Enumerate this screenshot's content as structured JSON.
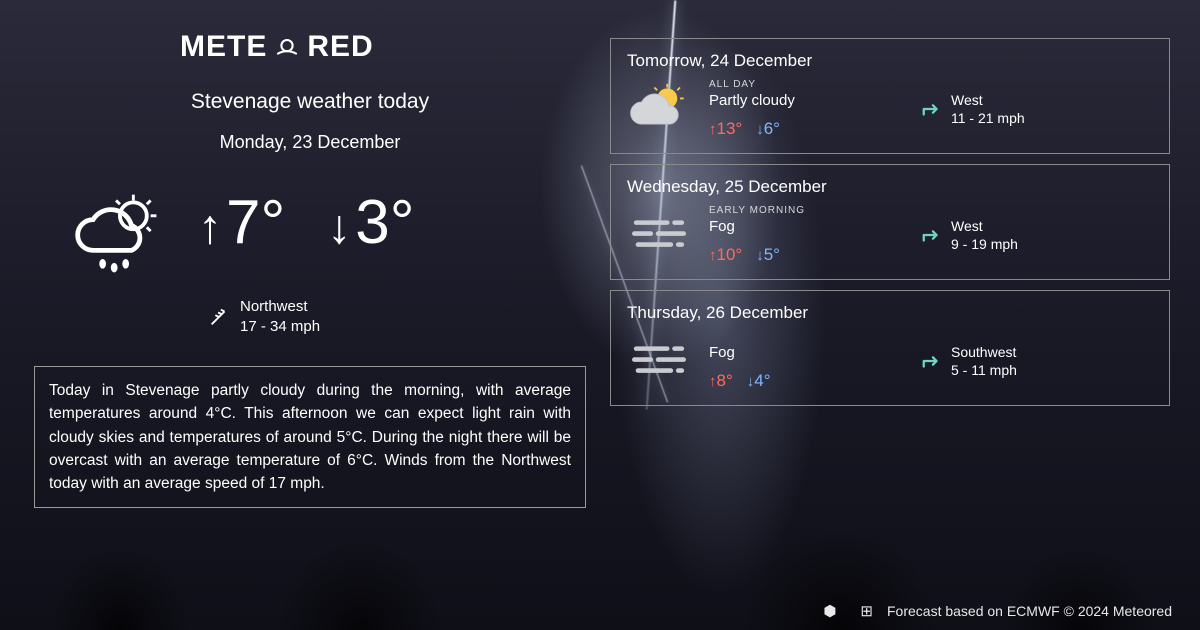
{
  "brand": {
    "name": "METEORED"
  },
  "header": {
    "title": "Stevenage weather today",
    "date": "Monday, 23 December"
  },
  "colors": {
    "text": "#ffffff",
    "border": "#8a8a8a",
    "hi": "#ff6b5b",
    "lo": "#7fb8ff"
  },
  "current": {
    "icon": "cloud-sun-rain",
    "high": "7°",
    "low": "3°",
    "wind_dir": "Northwest",
    "wind_speed": "17 - 34 mph"
  },
  "description": "Today in Stevenage partly cloudy during the morning, with average temperatures around 4°C. This afternoon we can expect light rain with cloudy skies and temperatures of around 5°C. During the night there will be overcast with an average temperature of 6°C. Winds from the Northwest today with an average speed of 17 mph.",
  "forecast": [
    {
      "title": "Tomorrow, 24 December",
      "period": "ALL DAY",
      "condition": "Partly cloudy",
      "icon": "partly-cloudy",
      "high": "13°",
      "low": "6°",
      "wind_dir": "West",
      "wind_speed": "11 - 21 mph"
    },
    {
      "title": "Wednesday, 25 December",
      "period": "EARLY MORNING",
      "condition": "Fog",
      "icon": "fog",
      "high": "10°",
      "low": "5°",
      "wind_dir": "West",
      "wind_speed": "9 - 19 mph"
    },
    {
      "title": "Thursday, 26 December",
      "period": "",
      "condition": "Fog",
      "icon": "fog",
      "high": "8°",
      "low": "4°",
      "wind_dir": "Southwest",
      "wind_speed": "5 - 11 mph"
    }
  ],
  "footer": {
    "credit": "Forecast based on ECMWF © 2024 Meteored"
  }
}
